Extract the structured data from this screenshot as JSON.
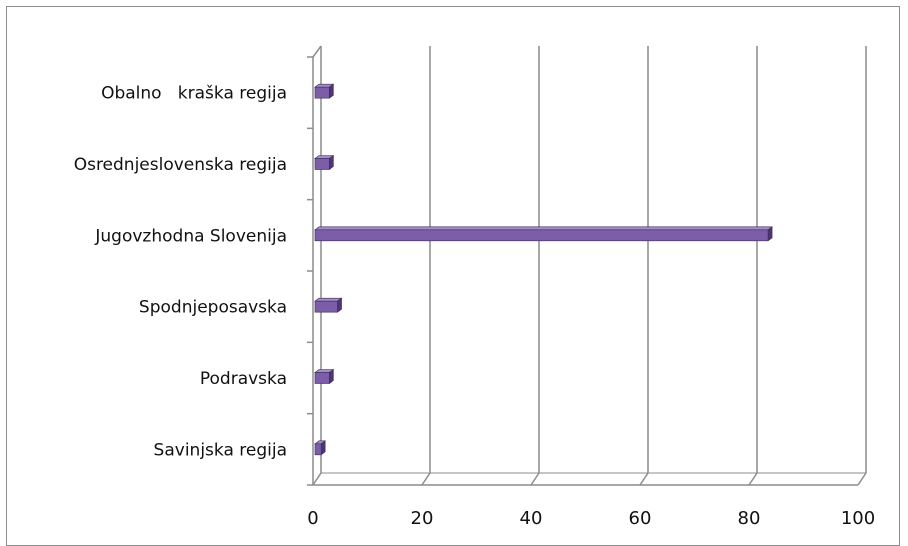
{
  "chart_data": {
    "type": "bar",
    "orientation": "horizontal",
    "style": "3d",
    "title": "",
    "xlabel": "",
    "ylabel": "",
    "categories": [
      "Savinjska regija",
      "Podravska",
      "Spodnjeposavska",
      "Jugovzhodna Slovenija",
      "Osrednjeslovenska regija",
      "Obalno   kraška regija"
    ],
    "values": [
      1.5,
      3.0,
      4.5,
      83.5,
      3.0,
      3.0
    ],
    "xlim": [
      0,
      100
    ],
    "x_ticks": [
      0,
      20,
      40,
      60,
      80,
      100
    ],
    "x_tick_labels": [
      "0",
      "20",
      "40",
      "60",
      "80",
      "100"
    ],
    "grid": true,
    "legend": "none",
    "colors": {
      "bar_front": "#7b5ea7",
      "bar_top": "#a48cc8",
      "bar_side": "#4e3575",
      "grid": "#8c8c8c"
    }
  }
}
